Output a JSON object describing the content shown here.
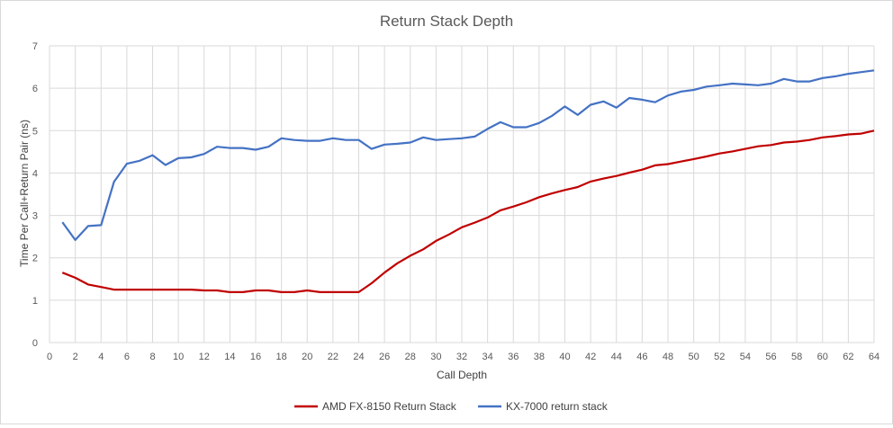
{
  "chart_data": {
    "type": "line",
    "title": "Return Stack Depth",
    "xlabel": "Call Depth",
    "ylabel": "Time Per Call+Return Pair (ns)",
    "xlim": [
      0,
      64
    ],
    "ylim": [
      0,
      7
    ],
    "xticks": [
      0,
      2,
      4,
      6,
      8,
      10,
      12,
      14,
      16,
      18,
      20,
      22,
      24,
      26,
      28,
      30,
      32,
      34,
      36,
      38,
      40,
      42,
      44,
      46,
      48,
      50,
      52,
      54,
      56,
      58,
      60,
      62,
      64
    ],
    "yticks": [
      0,
      1,
      2,
      3,
      4,
      5,
      6,
      7
    ],
    "grid": true,
    "legend_position": "bottom",
    "x": [
      1,
      2,
      3,
      4,
      5,
      6,
      7,
      8,
      9,
      10,
      11,
      12,
      13,
      14,
      15,
      16,
      17,
      18,
      19,
      20,
      21,
      22,
      23,
      24,
      25,
      26,
      27,
      28,
      29,
      30,
      31,
      32,
      33,
      34,
      35,
      36,
      37,
      38,
      39,
      40,
      41,
      42,
      43,
      44,
      45,
      46,
      47,
      48,
      49,
      50,
      51,
      52,
      53,
      54,
      55,
      56,
      57,
      58,
      59,
      60,
      61,
      62,
      63,
      64
    ],
    "series": [
      {
        "name": "AMD FX-8150 Return Stack",
        "color": "#c00000",
        "values": [
          1.65,
          1.53,
          1.37,
          1.31,
          1.25,
          1.25,
          1.25,
          1.25,
          1.25,
          1.25,
          1.25,
          1.23,
          1.23,
          1.19,
          1.19,
          1.23,
          1.23,
          1.19,
          1.19,
          1.23,
          1.19,
          1.19,
          1.19,
          1.19,
          1.4,
          1.65,
          1.87,
          2.05,
          2.2,
          2.4,
          2.55,
          2.72,
          2.83,
          2.95,
          3.12,
          3.21,
          3.31,
          3.43,
          3.52,
          3.6,
          3.67,
          3.8,
          3.87,
          3.93,
          4.01,
          4.08,
          4.18,
          4.21,
          4.27,
          4.33,
          4.39,
          4.46,
          4.51,
          4.57,
          4.63,
          4.66,
          4.72,
          4.74,
          4.78,
          4.84,
          4.87,
          4.91,
          4.93,
          5.0
        ]
      },
      {
        "name": "KX-7000 return stack",
        "color": "#4472c4",
        "values": [
          2.84,
          2.42,
          2.75,
          2.77,
          3.79,
          4.22,
          4.29,
          4.42,
          4.19,
          4.35,
          4.37,
          4.45,
          4.62,
          4.59,
          4.59,
          4.55,
          4.62,
          4.82,
          4.78,
          4.76,
          4.76,
          4.82,
          4.78,
          4.78,
          4.57,
          4.67,
          4.69,
          4.72,
          4.84,
          4.78,
          4.8,
          4.82,
          4.86,
          5.04,
          5.2,
          5.08,
          5.08,
          5.18,
          5.35,
          5.57,
          5.37,
          5.61,
          5.69,
          5.54,
          5.77,
          5.73,
          5.67,
          5.83,
          5.92,
          5.96,
          6.04,
          6.07,
          6.11,
          6.09,
          6.07,
          6.11,
          6.22,
          6.16,
          6.16,
          6.24,
          6.28,
          6.34,
          6.38,
          6.42
        ]
      }
    ]
  }
}
